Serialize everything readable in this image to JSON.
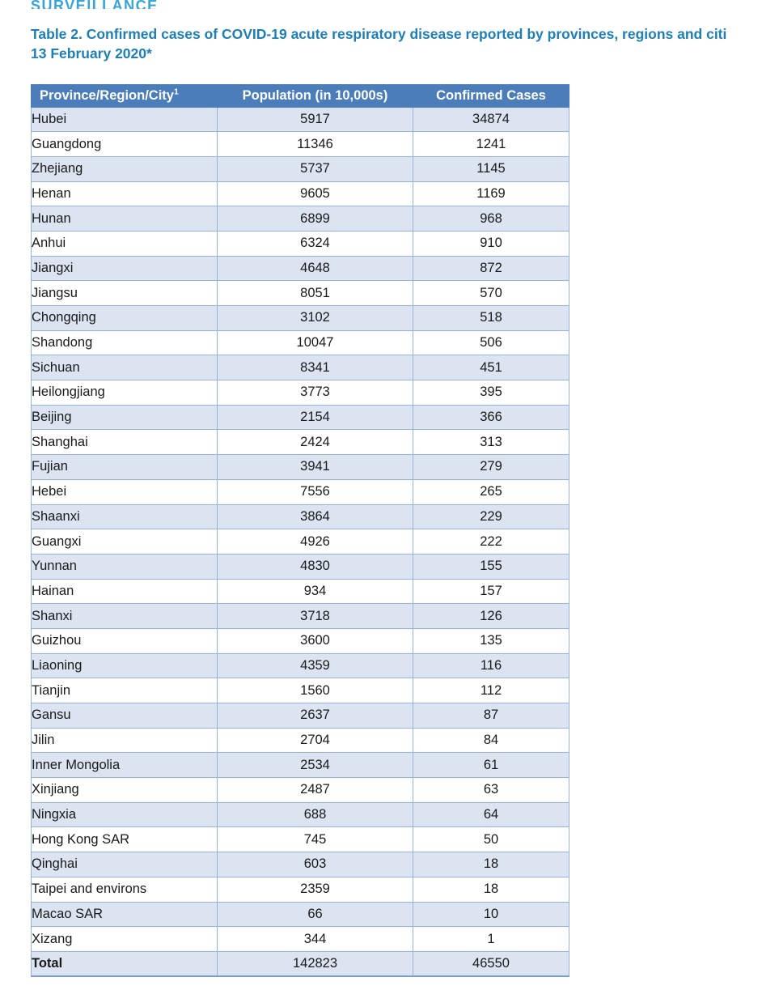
{
  "page": {
    "section_heading": "SURVEILLANCE",
    "title_line1": "Table 2. Confirmed cases of COVID-19 acute respiratory disease reported by provinces, regions and citi",
    "title_line2": "13 February 2020*"
  },
  "table": {
    "columns": {
      "province": "Province/Region/City",
      "province_superscript": "1",
      "population": "Population (in 10,000s)",
      "cases": "Confirmed Cases"
    },
    "rows": [
      {
        "name": "Hubei",
        "population": "5917",
        "cases": "34874"
      },
      {
        "name": "Guangdong",
        "population": "11346",
        "cases": "1241"
      },
      {
        "name": "Zhejiang",
        "population": "5737",
        "cases": "1145"
      },
      {
        "name": "Henan",
        "population": "9605",
        "cases": "1169"
      },
      {
        "name": "Hunan",
        "population": "6899",
        "cases": "968"
      },
      {
        "name": "Anhui",
        "population": "6324",
        "cases": "910"
      },
      {
        "name": "Jiangxi",
        "population": "4648",
        "cases": "872"
      },
      {
        "name": "Jiangsu",
        "population": "8051",
        "cases": "570"
      },
      {
        "name": "Chongqing",
        "population": "3102",
        "cases": "518"
      },
      {
        "name": "Shandong",
        "population": "10047",
        "cases": "506"
      },
      {
        "name": "Sichuan",
        "population": "8341",
        "cases": "451"
      },
      {
        "name": "Heilongjiang",
        "population": "3773",
        "cases": "395"
      },
      {
        "name": "Beijing",
        "population": "2154",
        "cases": "366"
      },
      {
        "name": "Shanghai",
        "population": "2424",
        "cases": "313"
      },
      {
        "name": "Fujian",
        "population": "3941",
        "cases": "279"
      },
      {
        "name": "Hebei",
        "population": "7556",
        "cases": "265"
      },
      {
        "name": "Shaanxi",
        "population": "3864",
        "cases": "229"
      },
      {
        "name": "Guangxi",
        "population": "4926",
        "cases": "222"
      },
      {
        "name": "Yunnan",
        "population": "4830",
        "cases": "155"
      },
      {
        "name": "Hainan",
        "population": "934",
        "cases": "157"
      },
      {
        "name": "Shanxi",
        "population": "3718",
        "cases": "126"
      },
      {
        "name": "Guizhou",
        "population": "3600",
        "cases": "135"
      },
      {
        "name": "Liaoning",
        "population": "4359",
        "cases": "116"
      },
      {
        "name": "Tianjin",
        "population": "1560",
        "cases": "112"
      },
      {
        "name": "Gansu",
        "population": "2637",
        "cases": "87"
      },
      {
        "name": "Jilin",
        "population": "2704",
        "cases": "84"
      },
      {
        "name": "Inner Mongolia",
        "population": "2534",
        "cases": "61"
      },
      {
        "name": "Xinjiang",
        "population": "2487",
        "cases": "63"
      },
      {
        "name": "Ningxia",
        "population": "688",
        "cases": "64"
      },
      {
        "name": "Hong Kong SAR",
        "population": "745",
        "cases": "50"
      },
      {
        "name": "Qinghai",
        "population": "603",
        "cases": "18"
      },
      {
        "name": "Taipei and environs",
        "population": "2359",
        "cases": "18"
      },
      {
        "name": "Macao SAR",
        "population": "66",
        "cases": "10"
      },
      {
        "name": "Xizang",
        "population": "344",
        "cases": "1"
      }
    ],
    "total": {
      "label": "Total",
      "population": "142823",
      "cases": "46550"
    }
  },
  "colors": {
    "header_bg": "#4a7db9",
    "stripe_bg": "#dbe4f0",
    "border": "#95b3d7",
    "outer_border": "#7ba0cd",
    "title_text": "#1d7fb5",
    "section_heading_text": "#35a4d8",
    "body_text": "#1a1a1a"
  }
}
